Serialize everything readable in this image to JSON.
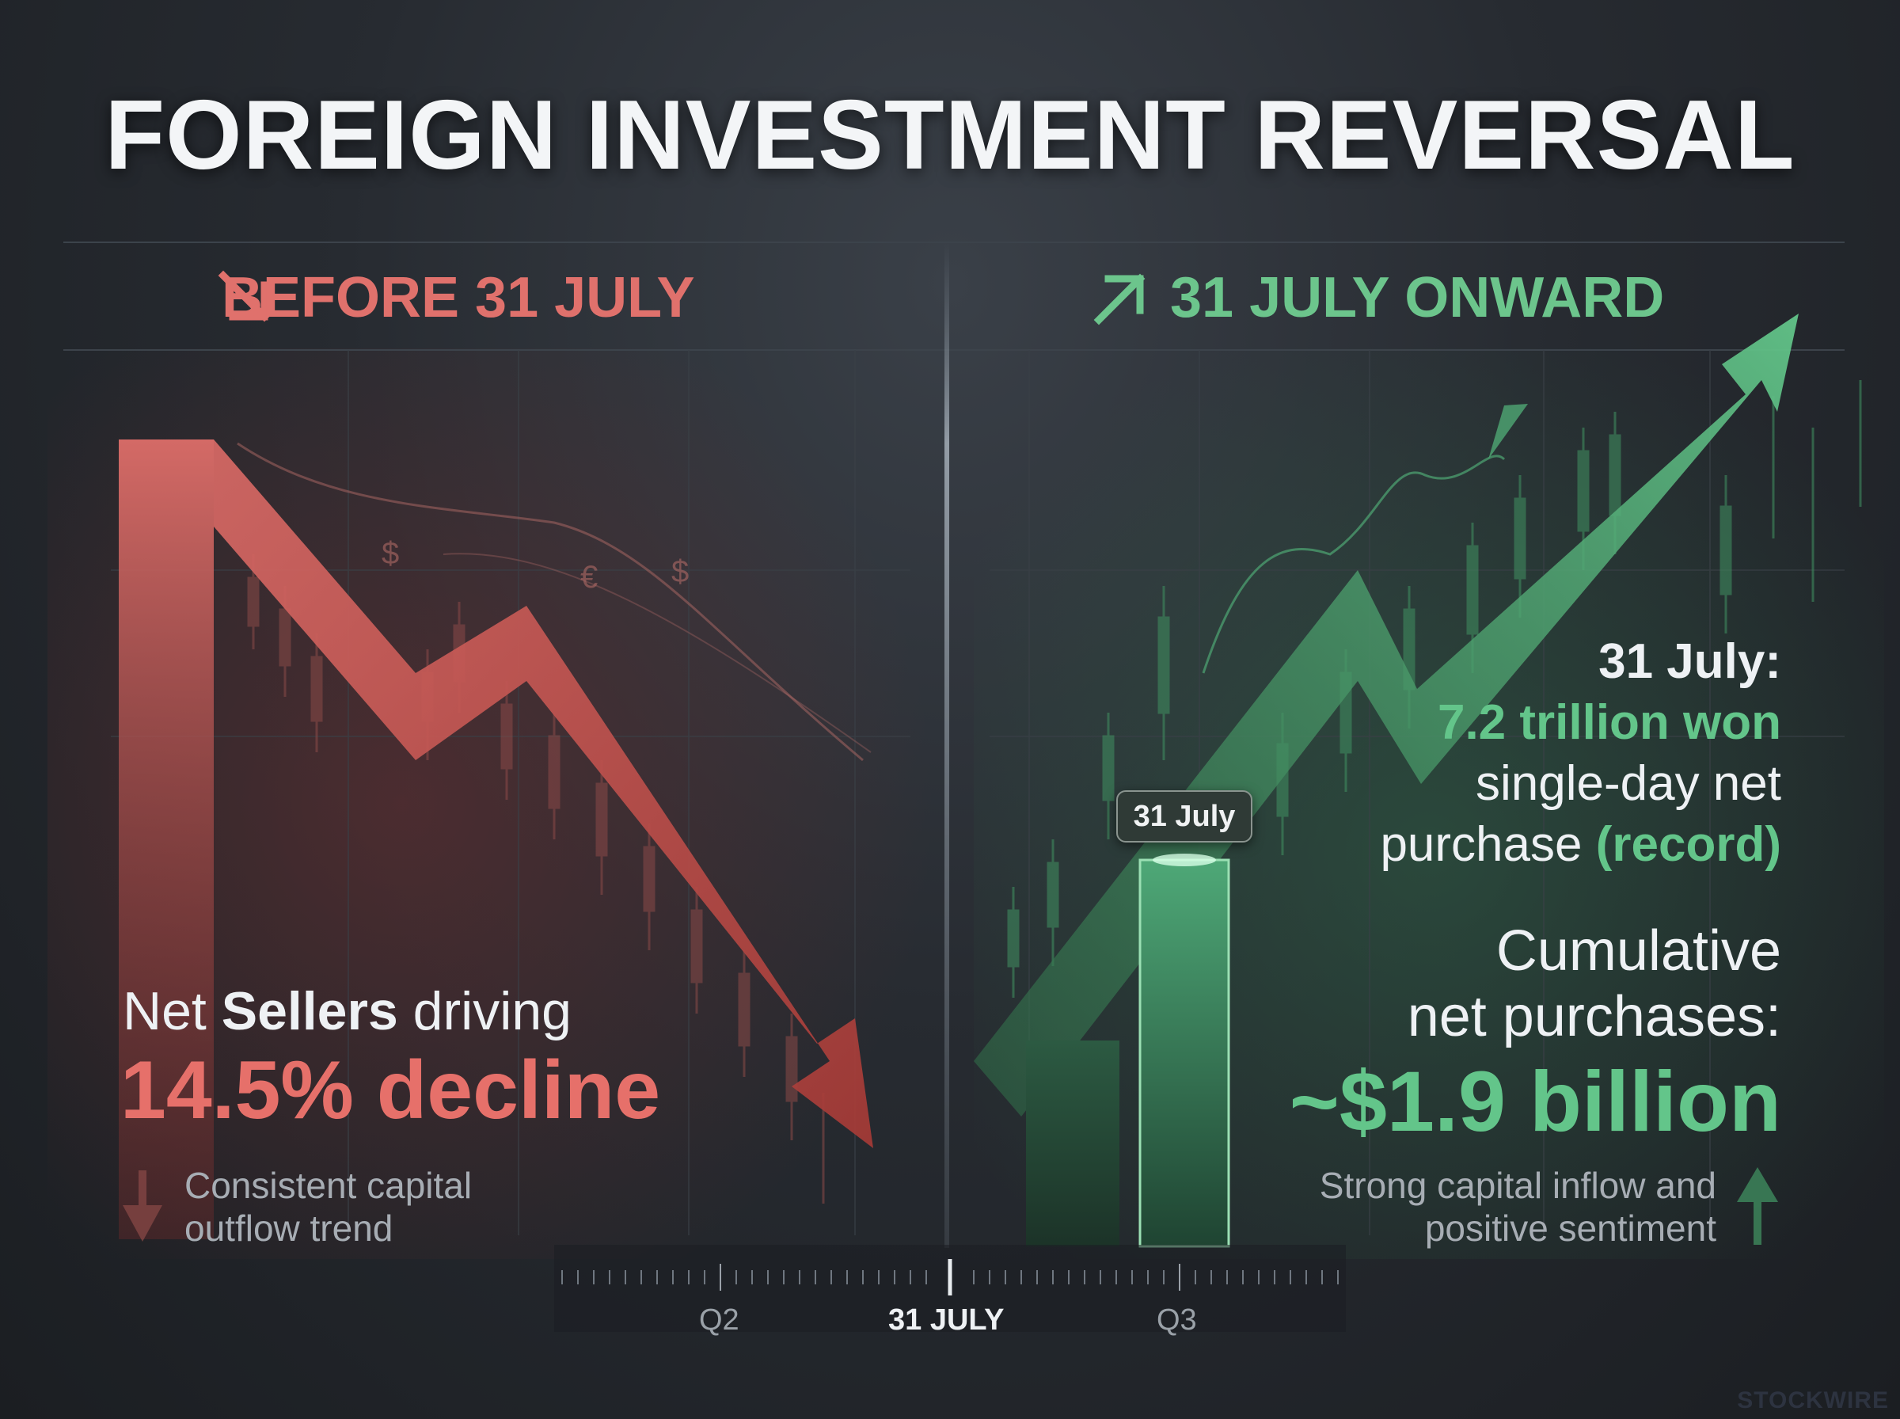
{
  "title": "FOREIGN INVESTMENT REVERSAL",
  "left": {
    "header": "BEFORE 31 JULY",
    "header_icon": "arrow-down-right-icon",
    "stat_line_prefix": "Net ",
    "stat_line_bold": "Sellers",
    "stat_line_suffix": " driving",
    "stat_value": "14.5% decline",
    "note_icon": "arrow-down-icon",
    "note": "Consistent capital outflow trend"
  },
  "right": {
    "header": "31 JULY ONWARD",
    "header_icon": "arrow-up-right-icon",
    "date_label": "31 July:",
    "amount": "7.2 trillion won",
    "desc_1": "single-day net",
    "desc_2": "purchase",
    "desc_highlight": "(record)",
    "cumulative_1": "Cumulative",
    "cumulative_2": "net purchases:",
    "cumulative_value": "~$1.9 billion",
    "note_icon": "arrow-up-icon",
    "note": "Strong capital inflow and positive sentiment",
    "badge": "31 July"
  },
  "timeline": {
    "ticks": [
      "Q2",
      "31 JULY",
      "Q3"
    ]
  },
  "watermark": "STOCKWIRE",
  "colors": {
    "red": "#e6706a",
    "green": "#63c58a",
    "background": "#24282d"
  }
}
